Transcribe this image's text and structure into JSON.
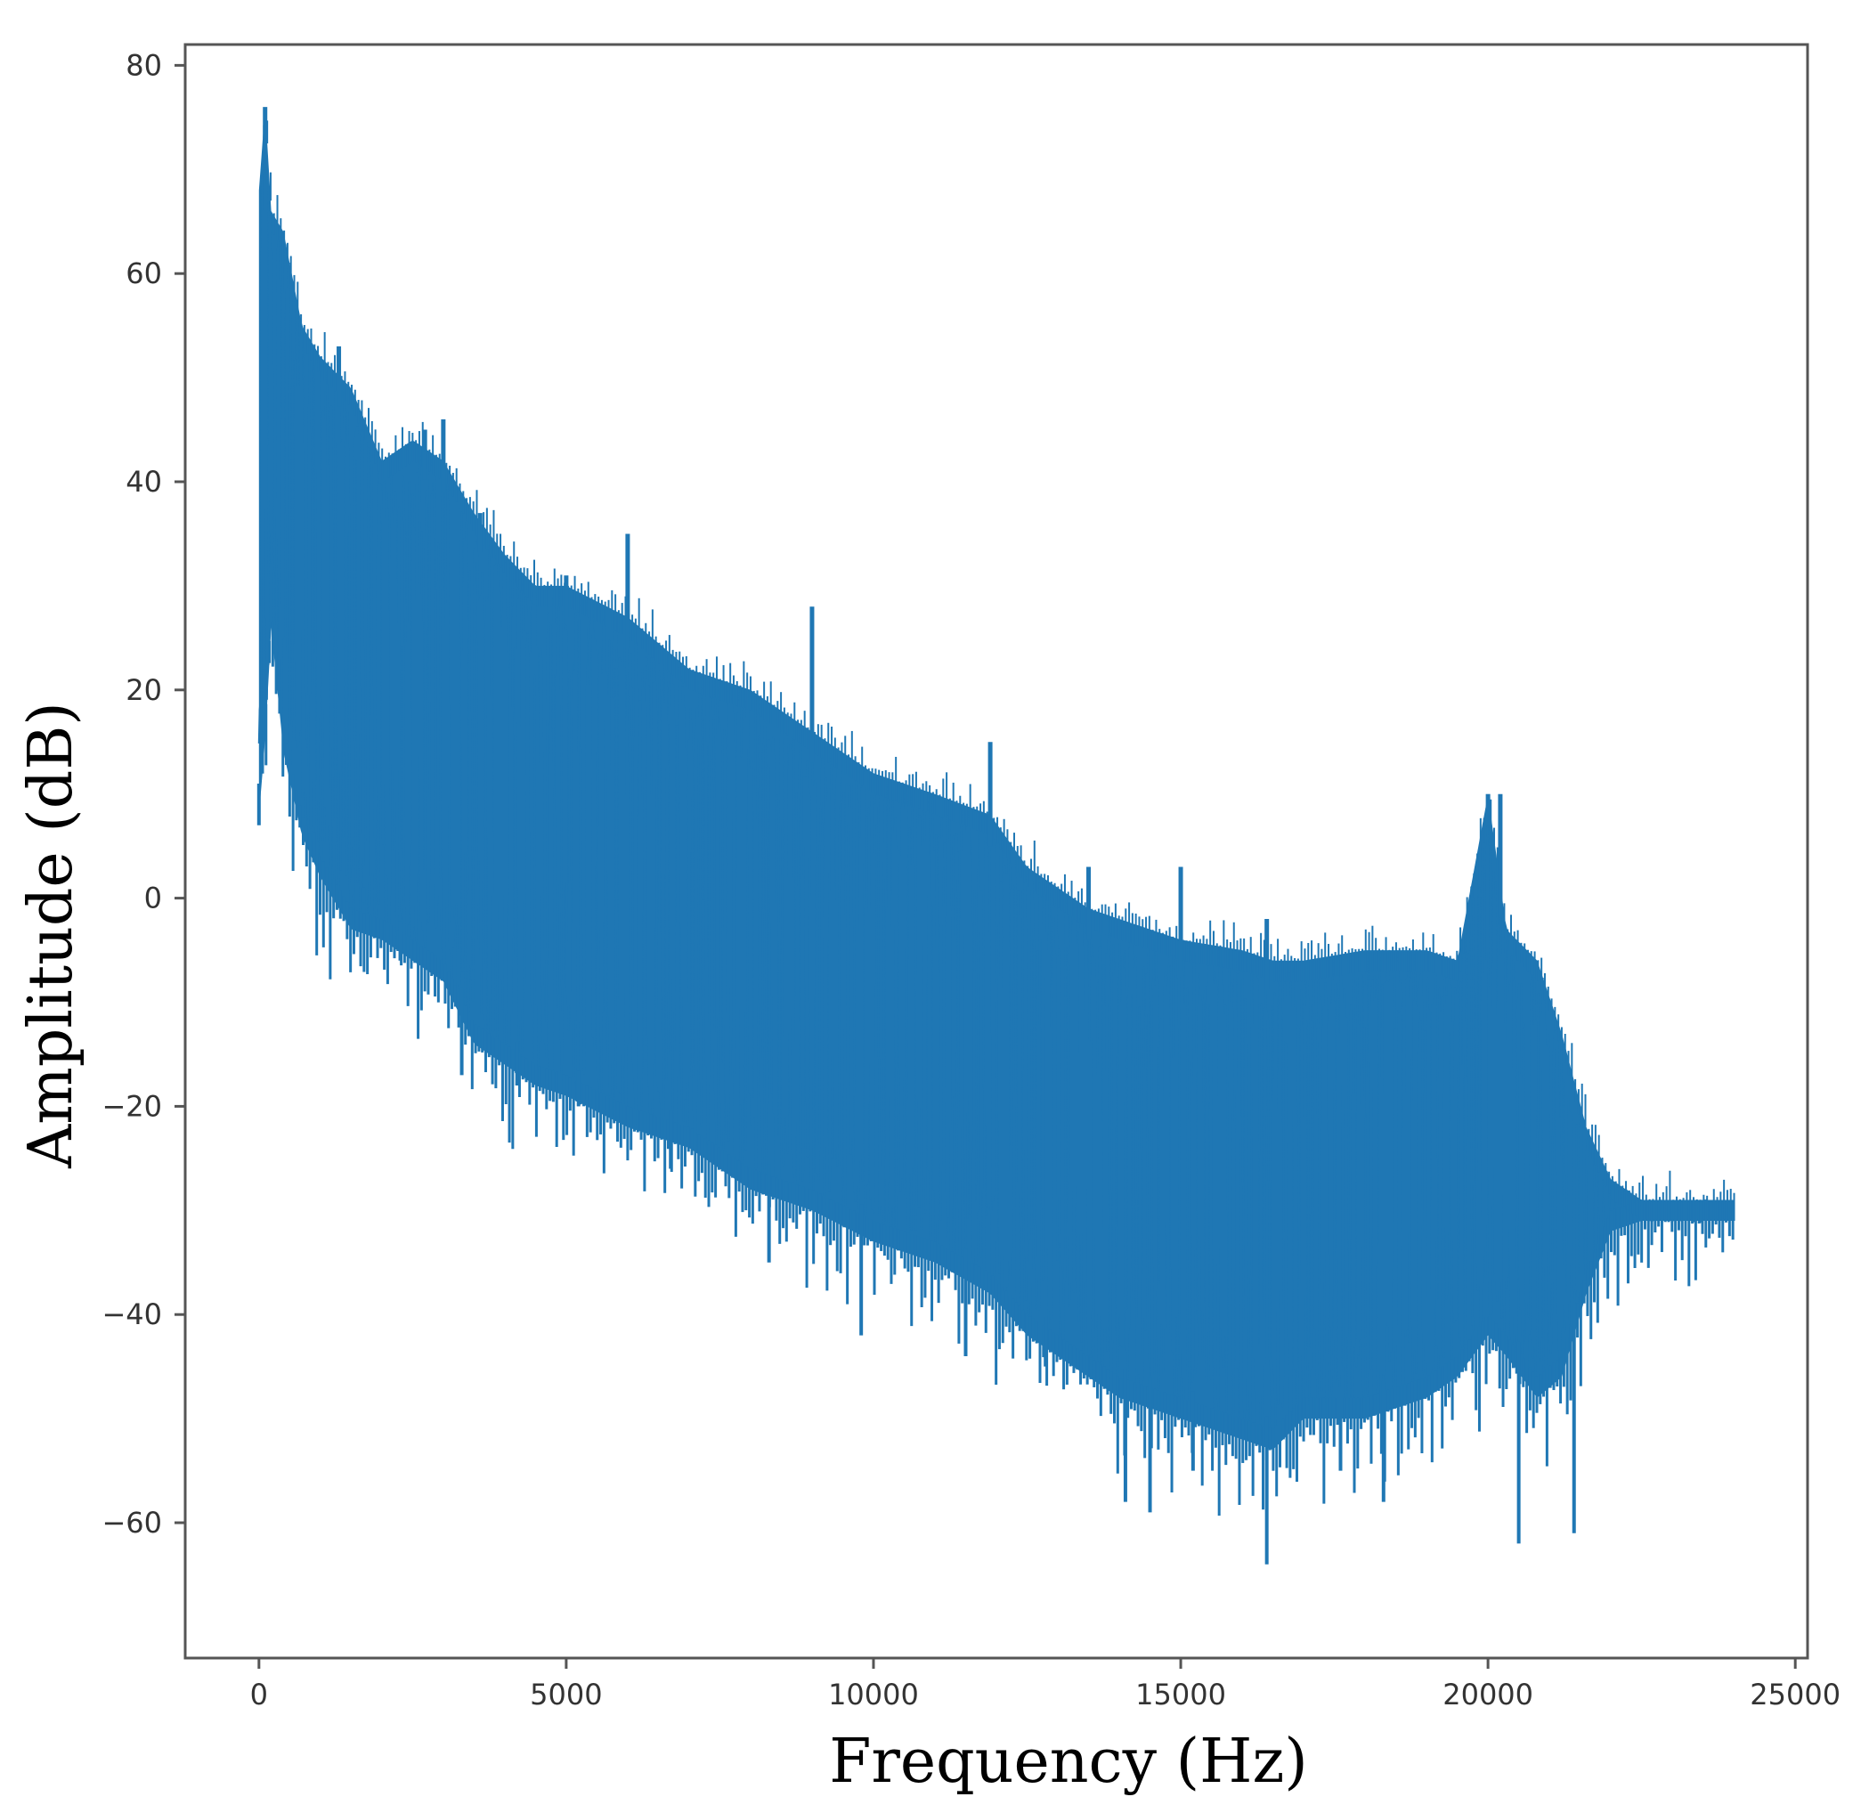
{
  "chart_data": {
    "type": "line",
    "title": "",
    "xlabel": "Frequency (Hz)",
    "ylabel": "Amplitude (dB)",
    "xlim": [
      -1200,
      25200
    ],
    "ylim": [
      -73,
      82
    ],
    "x_ticks": [
      0,
      5000,
      10000,
      15000,
      20000,
      25000
    ],
    "x_tick_labels": [
      "0",
      "5000",
      "10000",
      "15000",
      "20000",
      "25000"
    ],
    "y_ticks": [
      80,
      60,
      40,
      20,
      0,
      -20,
      -40,
      -60
    ],
    "y_tick_labels": [
      "80",
      "60",
      "40",
      "20",
      "0",
      "−20",
      "−40",
      "−60"
    ],
    "grid": false,
    "legend": "none",
    "series": [
      {
        "color": "#1f77b4",
        "x": [
          0,
          100,
          200,
          400,
          700,
          1000,
          1500,
          2000,
          2500,
          3000,
          3500,
          4000,
          4500,
          5000,
          6000,
          7000,
          8000,
          9000,
          10000,
          11000,
          11900,
          12500,
          13000,
          13500,
          14000,
          15000,
          16000,
          16500,
          17000,
          18000,
          19000,
          19500,
          20000,
          20300,
          20800,
          21200,
          21600,
          22000,
          22500,
          23000,
          23500,
          24000
        ],
        "upper": [
          68,
          76,
          66,
          64,
          55,
          52,
          49,
          42,
          44,
          42,
          37,
          33,
          30,
          30,
          27,
          22,
          20,
          16,
          12,
          10,
          8,
          3,
          1,
          -1,
          -2,
          -4,
          -5,
          -6,
          -6,
          -5,
          -5,
          -6,
          10,
          -3,
          -6,
          -13,
          -22,
          -27,
          -29,
          -29,
          -29,
          -29
        ],
        "lower": [
          8,
          15,
          26,
          14,
          6,
          2,
          -3,
          -4,
          -6,
          -8,
          -14,
          -16,
          -18,
          -19,
          -22,
          -24,
          -28,
          -30,
          -33,
          -35,
          -38,
          -42,
          -44,
          -46,
          -48,
          -50,
          -52,
          -53,
          -50,
          -50,
          -48,
          -46,
          -42,
          -44,
          -48,
          -46,
          -38,
          -32,
          -31,
          -31,
          -31,
          -31
        ],
        "spikes_min": [
          [
            0,
            7
          ],
          [
            900,
            4
          ],
          [
            1700,
            1
          ],
          [
            2300,
            -6
          ],
          [
            3300,
            -17
          ],
          [
            4200,
            -18
          ],
          [
            5200,
            -20
          ],
          [
            6700,
            -26
          ],
          [
            8300,
            -35
          ],
          [
            9800,
            -42
          ],
          [
            11500,
            -44
          ],
          [
            12800,
            -45
          ],
          [
            14100,
            -58
          ],
          [
            14500,
            -59
          ],
          [
            15200,
            -55
          ],
          [
            16400,
            -64
          ],
          [
            17600,
            -55
          ],
          [
            18300,
            -58
          ],
          [
            20500,
            -62
          ],
          [
            21400,
            -61
          ]
        ],
        "spikes_max": [
          [
            100,
            76
          ],
          [
            1300,
            53
          ],
          [
            2700,
            45
          ],
          [
            3000,
            46
          ],
          [
            3600,
            37
          ],
          [
            5000,
            31
          ],
          [
            6000,
            35
          ],
          [
            9000,
            28
          ],
          [
            11900,
            15
          ],
          [
            13500,
            3
          ],
          [
            15000,
            3
          ],
          [
            16400,
            -2
          ],
          [
            20000,
            10
          ],
          [
            20200,
            10
          ]
        ]
      }
    ]
  }
}
